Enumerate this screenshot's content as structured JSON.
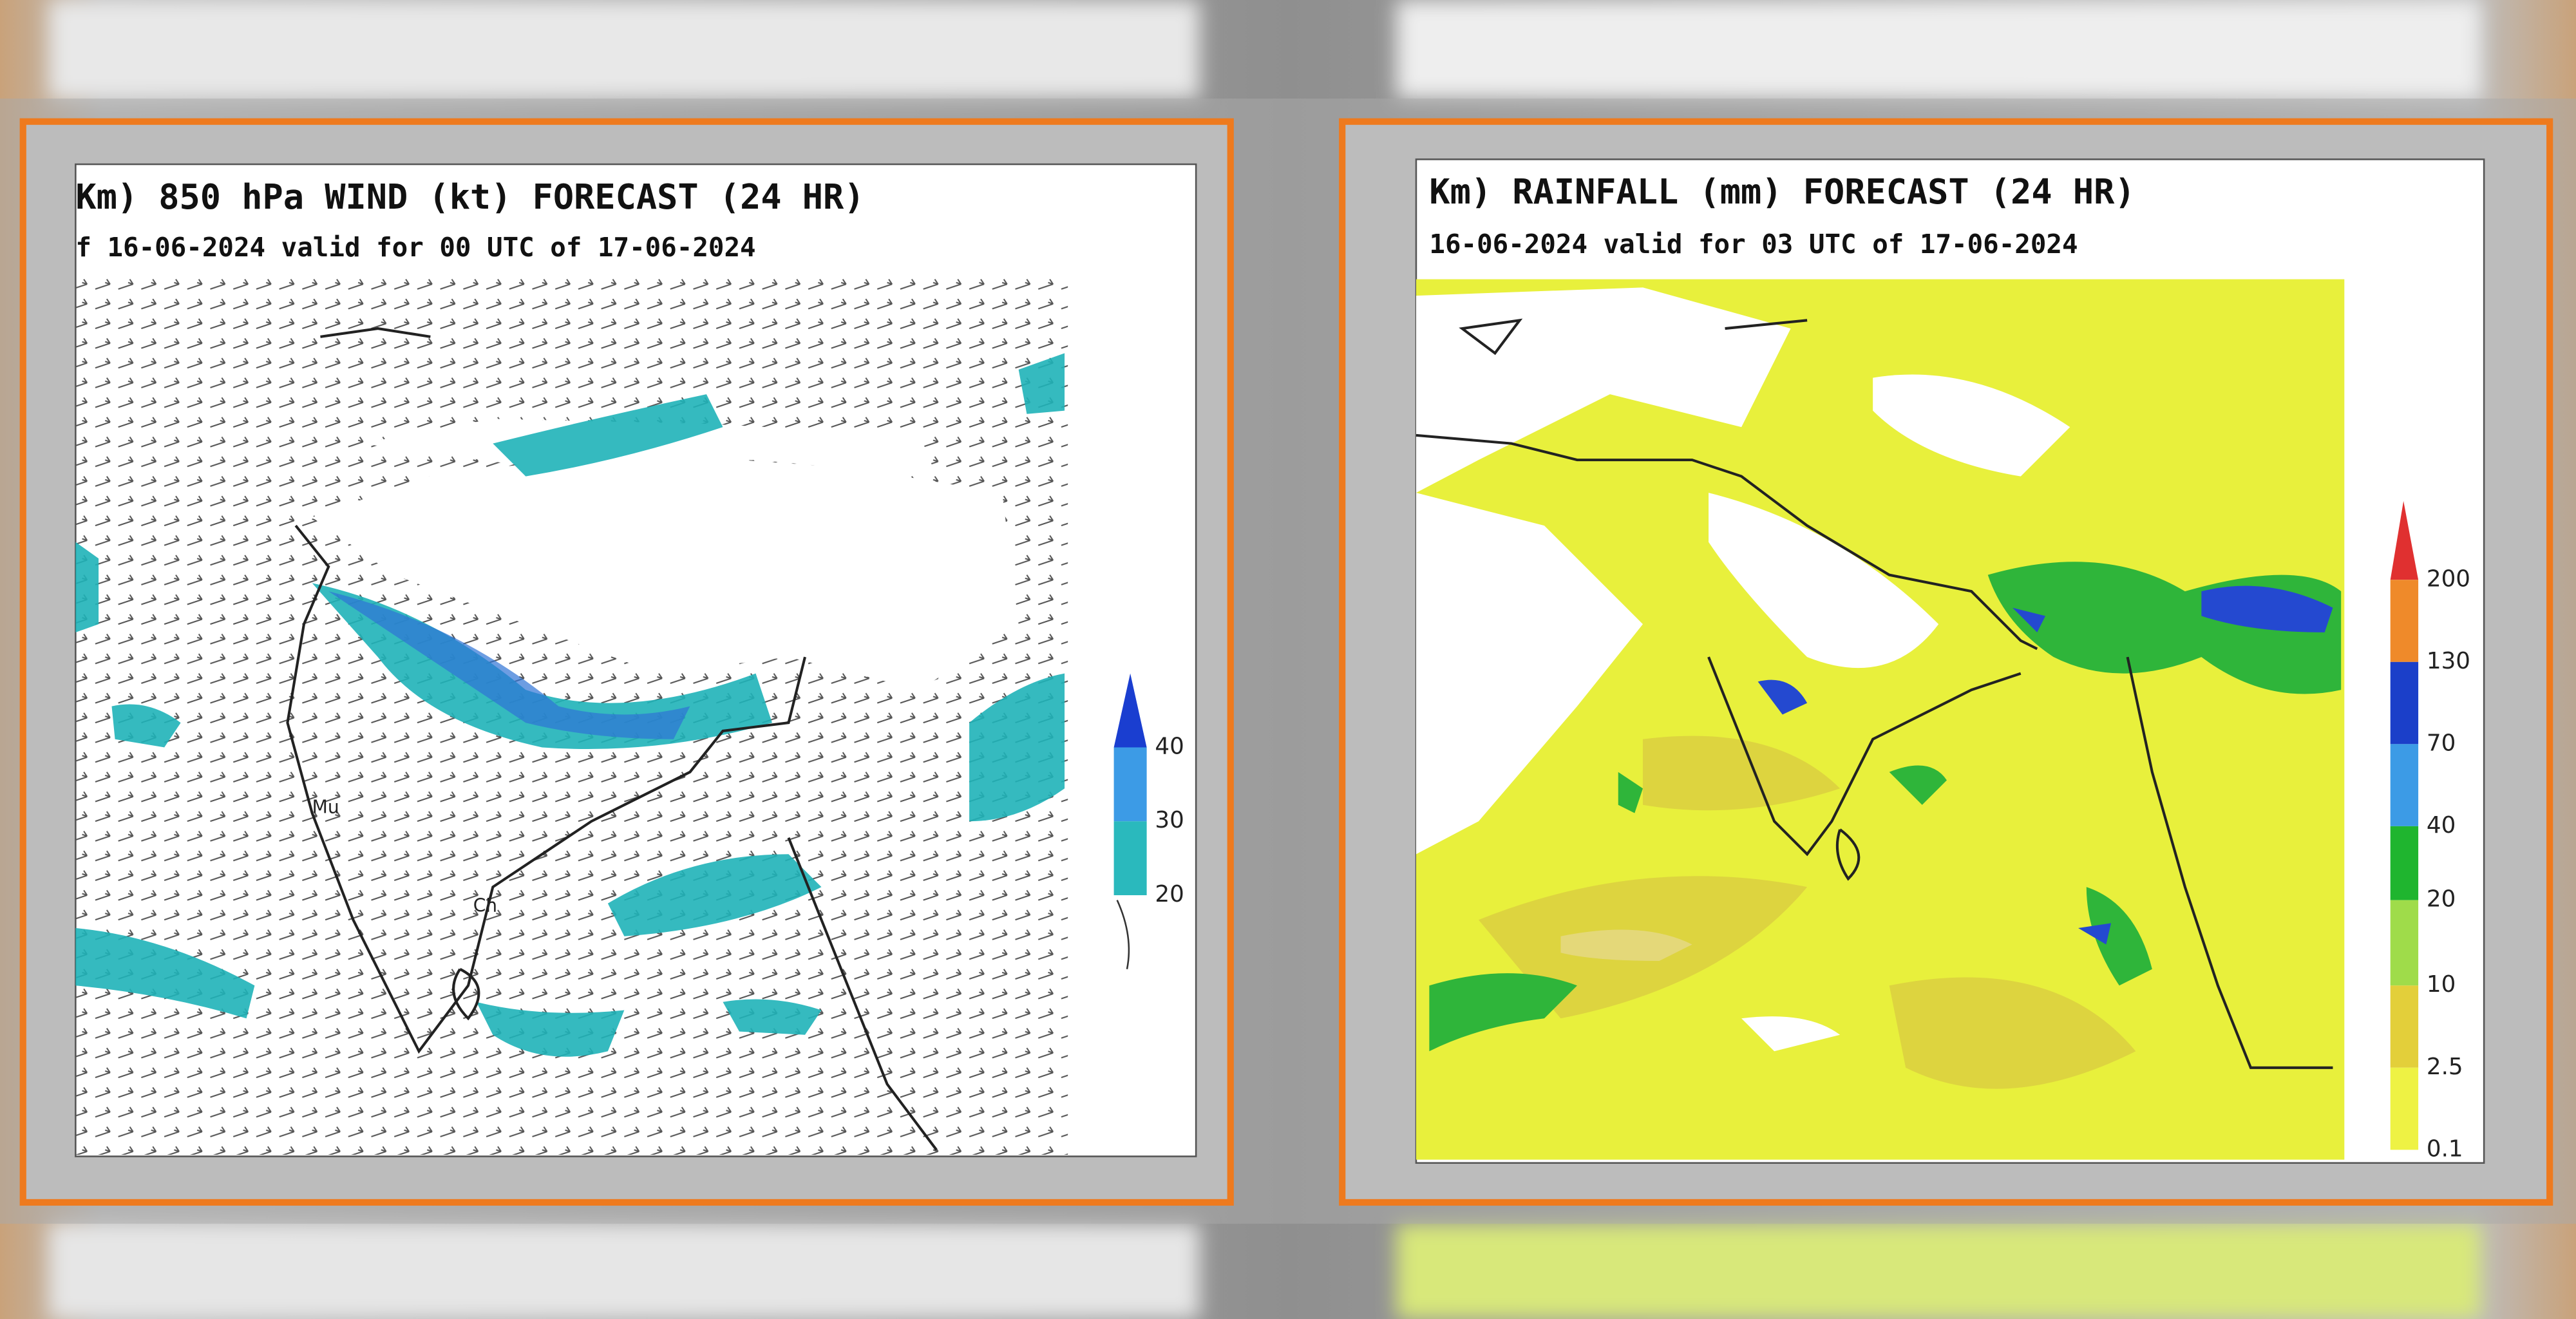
{
  "panels": [
    {
      "title": "Km) 850 hPa WIND (kt) FORECAST (24 HR)",
      "subtitle": "f 16-06-2024 valid for 00 UTC of 17-06-2024",
      "map_labels": [
        "Mu",
        "Ch"
      ],
      "legend": [
        40,
        30,
        20
      ]
    },
    {
      "title": "Km) RAINFALL (mm) FORECAST (24 HR)",
      "subtitle": "16-06-2024 valid for 03 UTC of 17-06-2024",
      "legend": [
        200,
        130,
        70,
        40,
        20,
        10,
        2.5,
        0.1
      ]
    }
  ]
}
